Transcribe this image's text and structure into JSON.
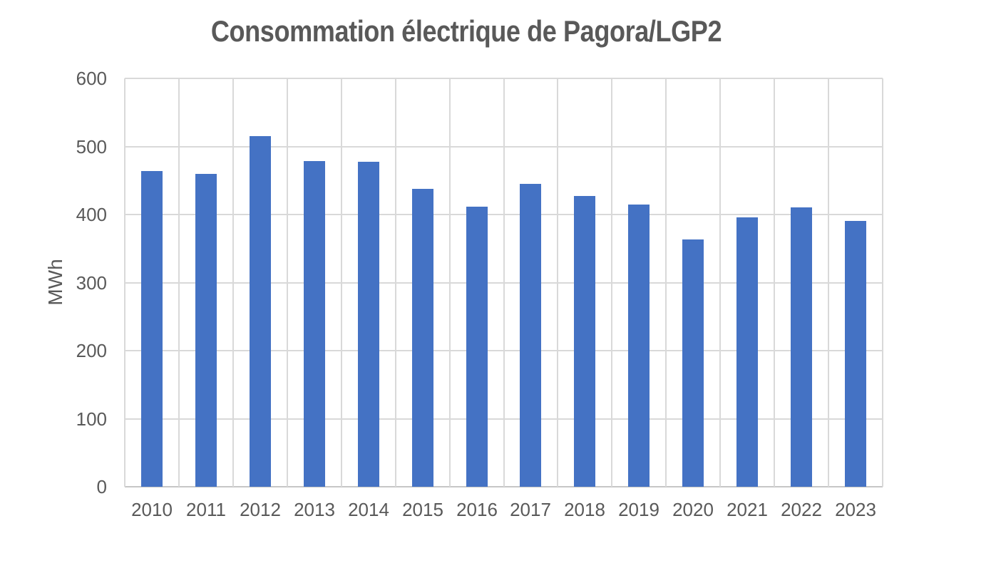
{
  "chart_data": {
    "type": "bar",
    "title": "Consommation électrique de Pagora/LGP2",
    "ylabel": "MWh",
    "xlabel": "",
    "categories": [
      "2010",
      "2011",
      "2012",
      "2013",
      "2014",
      "2015",
      "2016",
      "2017",
      "2018",
      "2019",
      "2020",
      "2021",
      "2022",
      "2023"
    ],
    "values": [
      464,
      460,
      515,
      479,
      478,
      438,
      412,
      445,
      427,
      415,
      363,
      396,
      410,
      391
    ],
    "ylim": [
      0,
      600
    ],
    "ytick_interval": 100,
    "yticks": [
      "0",
      "100",
      "200",
      "300",
      "400",
      "500",
      "600"
    ],
    "grid": true,
    "vertical_gridlines": true,
    "legend_position": "none",
    "colors": {
      "bar": "#4472C4",
      "gridline": "#D9D9D9",
      "axis_line": "#C6C6C6",
      "text": "#595959",
      "title": "#595959",
      "background": "#FFFFFF"
    }
  }
}
